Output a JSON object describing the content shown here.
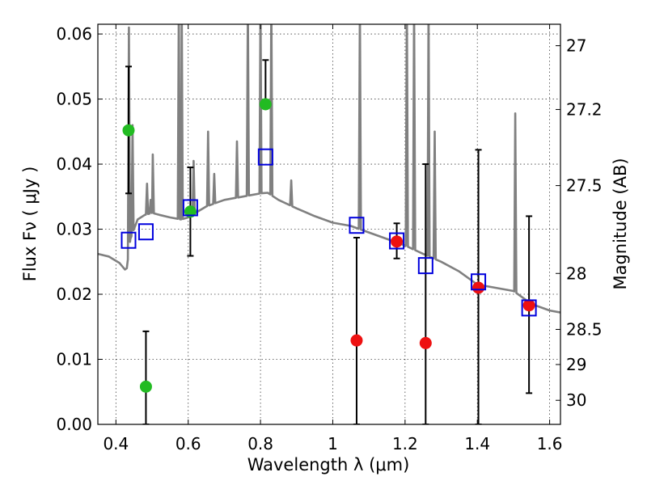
{
  "chart_data": {
    "type": "scatter",
    "xlabel": "Wavelength  λ (μm)",
    "ylabel": "Flux  Fν  ( μJy )",
    "ylabel_right": "Magnitude (AB)",
    "xlim": [
      0.35,
      1.63
    ],
    "ylim": [
      0.0,
      0.0615
    ],
    "grid": true,
    "x_ticks": [
      0.4,
      0.6,
      0.8,
      1.0,
      1.2,
      1.4,
      1.6
    ],
    "x_tick_labels": [
      "0.4",
      "0.6",
      "0.8",
      "1",
      "1.2",
      "1.4",
      "1.6"
    ],
    "y_ticks": [
      0.0,
      0.01,
      0.02,
      0.03,
      0.04,
      0.05,
      0.06
    ],
    "y_tick_labels": [
      "0.00",
      "0.01",
      "0.02",
      "0.03",
      "0.04",
      "0.05",
      "0.06"
    ],
    "right_ticks": [
      {
        "label": "27",
        "flux": 0.0582
      },
      {
        "label": "27.2",
        "flux": 0.0484
      },
      {
        "label": "27.5",
        "flux": 0.0367
      },
      {
        "label": "28",
        "flux": 0.0232
      },
      {
        "label": "28.5",
        "flux": 0.0146
      },
      {
        "label": "29",
        "flux": 0.0092
      },
      {
        "label": "30",
        "flux": 0.0037
      }
    ],
    "series": [
      {
        "marker": "circle",
        "color": "#22bb22",
        "points": [
          {
            "x": 0.435,
            "y": 0.0452,
            "err_lo": 0.0097,
            "err_hi": 0.0098
          },
          {
            "x": 0.483,
            "y": 0.0058,
            "err_lo": 0.0058,
            "err_hi": 0.0085
          },
          {
            "x": 0.606,
            "y": 0.0327,
            "err_lo": 0.0068,
            "err_hi": 0.0068
          },
          {
            "x": 0.814,
            "y": 0.0492,
            "err_lo": 0.0,
            "err_hi": 0.0068
          }
        ]
      },
      {
        "marker": "circle",
        "color": "#ee1111",
        "points": [
          {
            "x": 1.066,
            "y": 0.0129,
            "err_lo": 0.0129,
            "err_hi": 0.0158
          },
          {
            "x": 1.177,
            "y": 0.0281,
            "err_lo": 0.0026,
            "err_hi": 0.0028
          },
          {
            "x": 1.257,
            "y": 0.0125,
            "err_lo": 0.0125,
            "err_hi": 0.0275
          },
          {
            "x": 1.403,
            "y": 0.021,
            "err_lo": 0.021,
            "err_hi": 0.0212
          },
          {
            "x": 1.543,
            "y": 0.0183,
            "err_lo": 0.0135,
            "err_hi": 0.0137
          }
        ]
      },
      {
        "marker": "square",
        "color": "#0000dd",
        "points": [
          {
            "x": 0.435,
            "y": 0.0283
          },
          {
            "x": 0.483,
            "y": 0.0296
          },
          {
            "x": 0.606,
            "y": 0.0333
          },
          {
            "x": 0.814,
            "y": 0.0411
          },
          {
            "x": 1.066,
            "y": 0.0306
          },
          {
            "x": 1.177,
            "y": 0.0282
          },
          {
            "x": 1.257,
            "y": 0.0244
          },
          {
            "x": 1.403,
            "y": 0.0219
          },
          {
            "x": 1.543,
            "y": 0.0179
          }
        ]
      }
    ],
    "spectrum": {
      "color": "#808080",
      "continuum": [
        [
          0.35,
          0.0262
        ],
        [
          0.38,
          0.0258
        ],
        [
          0.41,
          0.0248
        ],
        [
          0.425,
          0.0238
        ],
        [
          0.43,
          0.024
        ],
        [
          0.44,
          0.0285
        ],
        [
          0.46,
          0.0315
        ],
        [
          0.48,
          0.0322
        ],
        [
          0.5,
          0.0325
        ],
        [
          0.52,
          0.0322
        ],
        [
          0.55,
          0.0318
        ],
        [
          0.58,
          0.0315
        ],
        [
          0.6,
          0.0318
        ],
        [
          0.62,
          0.0325
        ],
        [
          0.65,
          0.0335
        ],
        [
          0.7,
          0.0345
        ],
        [
          0.75,
          0.035
        ],
        [
          0.8,
          0.0355
        ],
        [
          0.82,
          0.0356
        ],
        [
          0.85,
          0.0345
        ],
        [
          0.9,
          0.0332
        ],
        [
          0.95,
          0.032
        ],
        [
          1.0,
          0.031
        ],
        [
          1.05,
          0.0305
        ],
        [
          1.1,
          0.0295
        ],
        [
          1.15,
          0.0285
        ],
        [
          1.2,
          0.0275
        ],
        [
          1.25,
          0.0262
        ],
        [
          1.3,
          0.025
        ],
        [
          1.35,
          0.0235
        ],
        [
          1.4,
          0.0215
        ],
        [
          1.45,
          0.021
        ],
        [
          1.5,
          0.0205
        ],
        [
          1.55,
          0.0185
        ],
        [
          1.6,
          0.0175
        ],
        [
          1.63,
          0.0172
        ]
      ],
      "lines": [
        {
          "x": 0.436,
          "peak": 0.061
        },
        {
          "x": 0.446,
          "peak": 0.046
        },
        {
          "x": 0.486,
          "peak": 0.037
        },
        {
          "x": 0.496,
          "peak": 0.0345
        },
        {
          "x": 0.502,
          "peak": 0.0415
        },
        {
          "x": 0.574,
          "peak": 0.065
        },
        {
          "x": 0.582,
          "peak": 0.065
        },
        {
          "x": 0.615,
          "peak": 0.0405
        },
        {
          "x": 0.655,
          "peak": 0.045
        },
        {
          "x": 0.672,
          "peak": 0.0385
        },
        {
          "x": 0.735,
          "peak": 0.0435
        },
        {
          "x": 0.765,
          "peak": 0.065
        },
        {
          "x": 0.8,
          "peak": 0.065
        },
        {
          "x": 0.83,
          "peak": 0.065
        },
        {
          "x": 0.885,
          "peak": 0.0375
        },
        {
          "x": 1.075,
          "peak": 0.065
        },
        {
          "x": 1.205,
          "peak": 0.065
        },
        {
          "x": 1.225,
          "peak": 0.065
        },
        {
          "x": 1.265,
          "peak": 0.065
        },
        {
          "x": 1.282,
          "peak": 0.045
        },
        {
          "x": 1.505,
          "peak": 0.0478
        }
      ]
    }
  }
}
